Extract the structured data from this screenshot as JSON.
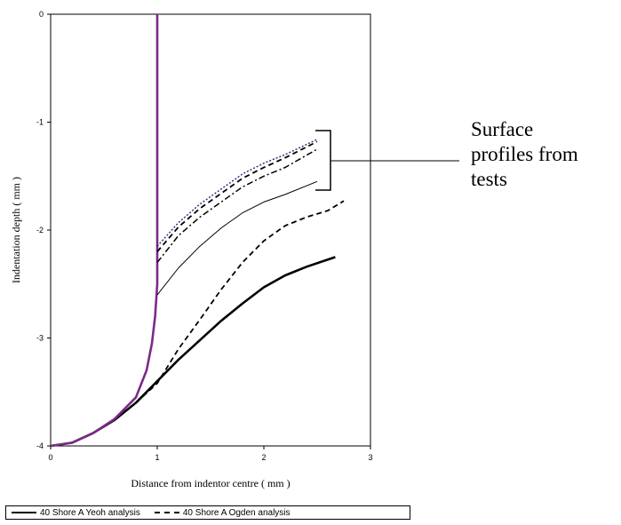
{
  "chart_data": {
    "type": "line",
    "title": "",
    "xlabel": "Distance from indentor centre ( mm )",
    "ylabel": "Indentation depth ( mm )",
    "xlim": [
      0,
      3
    ],
    "ylim": [
      -4,
      0
    ],
    "x_ticks": [
      "0",
      "1",
      "2",
      "3"
    ],
    "y_ticks": [
      "0",
      "-1",
      "-2",
      "-3",
      "-4"
    ],
    "grid": false,
    "legend_position": "bottom",
    "series": [
      {
        "name": "40 Shore A Yeoh analysis",
        "style": "solid",
        "color": "#000000",
        "x": [
          0,
          0.2,
          0.4,
          0.6,
          0.8,
          1.0,
          1.2,
          1.4,
          1.6,
          1.8,
          2.0,
          2.2,
          2.4,
          2.67
        ],
        "y": [
          -4.0,
          -3.97,
          -3.88,
          -3.76,
          -3.6,
          -3.4,
          -3.2,
          -3.02,
          -2.84,
          -2.68,
          -2.53,
          -2.42,
          -2.34,
          -2.25
        ]
      },
      {
        "name": "40 Shore A Ogden analysis",
        "style": "dashed",
        "color": "#000000",
        "x": [
          0,
          0.2,
          0.4,
          0.6,
          0.8,
          1.0,
          1.2,
          1.4,
          1.6,
          1.8,
          2.0,
          2.2,
          2.4,
          2.6,
          2.75
        ],
        "y": [
          -4.0,
          -3.97,
          -3.88,
          -3.76,
          -3.6,
          -3.42,
          -3.1,
          -2.83,
          -2.55,
          -2.3,
          -2.1,
          -1.96,
          -1.88,
          -1.82,
          -1.73
        ]
      },
      {
        "name": "",
        "style": "solid-thick",
        "color": "#7b2a88",
        "x": [
          0,
          0.2,
          0.4,
          0.6,
          0.8,
          0.9,
          0.95,
          0.98,
          1.0,
          1.0,
          1.0
        ],
        "y": [
          -4.0,
          -3.97,
          -3.88,
          -3.75,
          -3.55,
          -3.3,
          -3.05,
          -2.8,
          -2.5,
          -1.0,
          0
        ]
      },
      {
        "name": "",
        "style": "thin",
        "color": "#000000",
        "x": [
          1.0,
          1.2,
          1.4,
          1.6,
          1.8,
          2.0,
          2.2,
          2.5
        ],
        "y": [
          -2.6,
          -2.35,
          -2.15,
          -1.98,
          -1.84,
          -1.74,
          -1.67,
          -1.55
        ]
      },
      {
        "name": "",
        "style": "dashdot",
        "color": "#000000",
        "x": [
          1.0,
          1.2,
          1.4,
          1.6,
          1.8,
          2.0,
          2.2,
          2.5
        ],
        "y": [
          -2.3,
          -2.05,
          -1.88,
          -1.74,
          -1.6,
          -1.5,
          -1.42,
          -1.25
        ]
      },
      {
        "name": "",
        "style": "dashed",
        "color": "#000000",
        "x": [
          1.0,
          1.2,
          1.4,
          1.6,
          1.8,
          2.0,
          2.2,
          2.5
        ],
        "y": [
          -2.2,
          -1.97,
          -1.8,
          -1.66,
          -1.52,
          -1.42,
          -1.33,
          -1.18
        ]
      },
      {
        "name": "",
        "style": "dotted",
        "color": "#2a2a7a",
        "x": [
          1.0,
          1.2,
          1.4,
          1.6,
          1.8,
          2.0,
          2.2,
          2.5
        ],
        "y": [
          -2.15,
          -1.93,
          -1.76,
          -1.62,
          -1.48,
          -1.38,
          -1.3,
          -1.16
        ]
      }
    ],
    "annotation": {
      "lines": [
        "Surface",
        "profiles from",
        "tests"
      ]
    }
  }
}
